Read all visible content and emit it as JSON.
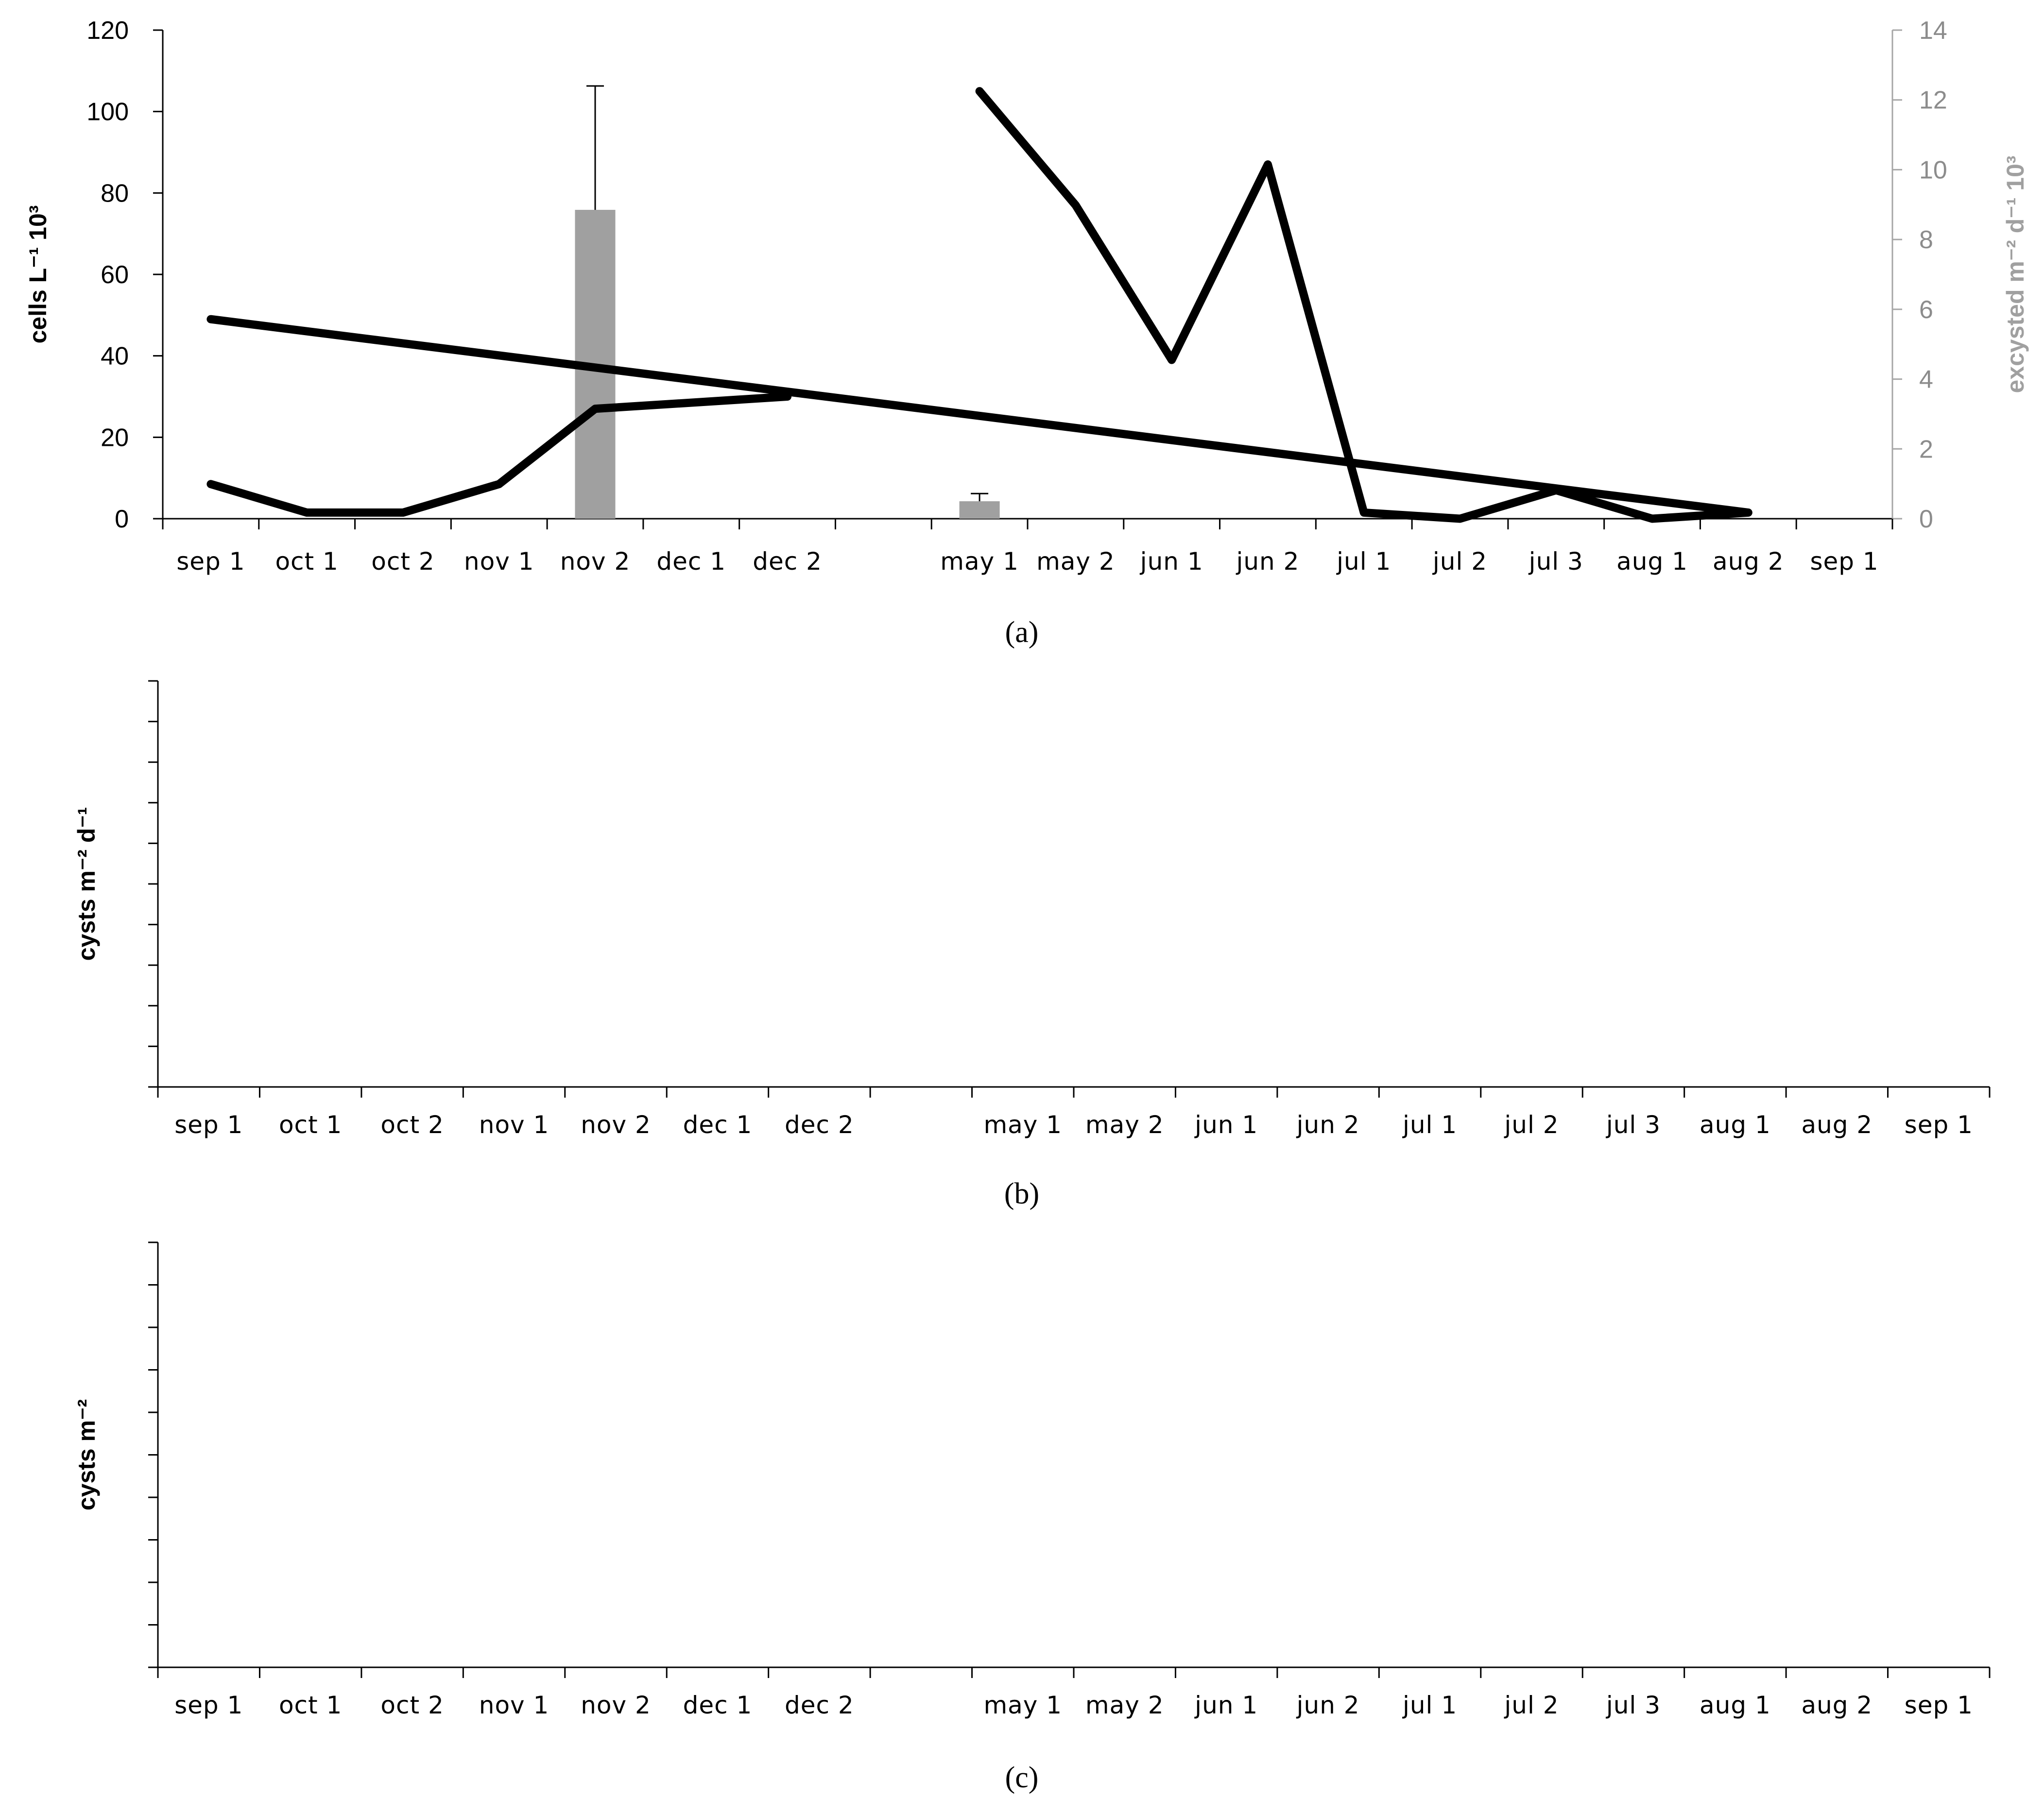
{
  "chart_data": [
    {
      "panel": "a",
      "panel_label": "(a)",
      "type": "bar+line",
      "categories": [
        "sep 1",
        "oct 1",
        "oct 2",
        "nov 1",
        "nov 2",
        "dec 1",
        "dec 2",
        "",
        "may 1",
        "may 2",
        "jun 1",
        "jun 2",
        "jul 1",
        "jul 2",
        "jul 3",
        "aug 1",
        "aug 2",
        "sep 1"
      ],
      "ylabel_left": "cells L⁻¹ 10³",
      "ylabel_right": "excysted m⁻² d⁻¹ 10³",
      "ylim_left": [
        0,
        120
      ],
      "yticks_left": [
        0,
        20,
        40,
        60,
        80,
        100,
        120
      ],
      "ylim_right": [
        0,
        14
      ],
      "yticks_right": [
        0,
        2,
        4,
        6,
        8,
        10,
        12,
        14
      ],
      "bars": {
        "axis": "right",
        "color": "#a0a0a0",
        "points": [
          {
            "category": "nov 2",
            "value": 8.85,
            "error_upper": 12.4
          },
          {
            "category": "may 1",
            "value": 0.5,
            "error_upper": 0.72
          }
        ]
      },
      "line_segments": [
        {
          "axis": "left",
          "color": "#000000",
          "points": [
            [
              "sep 1",
              8.5
            ],
            [
              "oct 1",
              1.5
            ],
            [
              "oct 2",
              1.5
            ],
            [
              "nov 1",
              8.5
            ],
            [
              "nov 2",
              27
            ],
            [
              "dec 2",
              30
            ]
          ]
        },
        {
          "axis": "left",
          "color": "#000000",
          "points": [
            [
              "may 1",
              105
            ],
            [
              "may 2",
              77
            ],
            [
              "jun 1",
              39
            ],
            [
              "jun 2",
              87
            ],
            [
              "jul 1",
              1.5
            ],
            [
              "jul 2",
              0
            ],
            [
              "jul 3",
              7
            ],
            [
              "aug 1",
              0
            ],
            [
              "aug 2",
              1.5
            ],
            [
              "sep 1",
              49
            ]
          ]
        }
      ]
    },
    {
      "panel": "b",
      "panel_label": "(b)",
      "type": "line",
      "categories": [
        "sep 1",
        "oct 1",
        "oct 2",
        "nov 1",
        "nov 2",
        "dec 1",
        "dec 2",
        "",
        "may 1",
        "may 2",
        "jun 1",
        "jun 2",
        "jul 1",
        "jul 2",
        "jul 3",
        "aug 1",
        "aug 2",
        "sep 1"
      ],
      "ylabel": "cysts m⁻² d⁻¹",
      "ytick_count": 11,
      "series": []
    },
    {
      "panel": "c",
      "panel_label": "(c)",
      "type": "line",
      "categories": [
        "sep 1",
        "oct 1",
        "oct 2",
        "nov 1",
        "nov 2",
        "dec 1",
        "dec 2",
        "",
        "may 1",
        "may 2",
        "jun 1",
        "jun 2",
        "jul 1",
        "jul 2",
        "jul 3",
        "aug 1",
        "aug 2",
        "sep 1"
      ],
      "ylabel": "cysts m⁻²",
      "ytick_count": 11,
      "series": []
    }
  ]
}
